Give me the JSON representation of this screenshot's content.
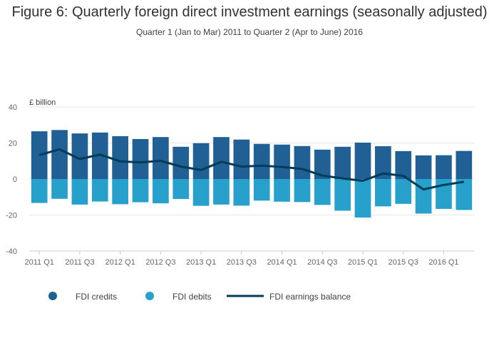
{
  "title": "Figure 6: Quarterly foreign direct investment earnings (seasonally adjusted)",
  "subtitle": "Quarter 1 (Jan to Mar) 2011 to Quarter 2 (Apr to June) 2016",
  "colors": {
    "credits": "#206095",
    "debits": "#27a0cc",
    "balance": "#003c57",
    "grid": "#e6e6e6"
  },
  "chart_data": {
    "type": "bar",
    "title": "Figure 6: Quarterly foreign direct investment earnings (seasonally adjusted)",
    "ylabel": "£ billion",
    "xlabel": "",
    "ylim": [
      -40,
      40
    ],
    "yticks": [
      40,
      20,
      0,
      -20,
      -40
    ],
    "categories": [
      "2011 Q1",
      "2011 Q2",
      "2011 Q3",
      "2011 Q4",
      "2012 Q1",
      "2012 Q2",
      "2012 Q3",
      "2012 Q4",
      "2013 Q1",
      "2013 Q2",
      "2013 Q3",
      "2013 Q4",
      "2014 Q1",
      "2014 Q2",
      "2014 Q3",
      "2014 Q4",
      "2015 Q1",
      "2015 Q2",
      "2015 Q3",
      "2015 Q4",
      "2016 Q1",
      "2016 Q2"
    ],
    "xtick_labels": [
      "2011 Q1",
      "2011 Q3",
      "2012 Q1",
      "2012 Q3",
      "2013 Q1",
      "2013 Q3",
      "2014 Q1",
      "2014 Q3",
      "2015 Q1",
      "2015 Q3",
      "2016 Q1"
    ],
    "series": [
      {
        "name": "FDI credits",
        "type": "bar",
        "values": [
          26.5,
          27.2,
          25.3,
          25.8,
          23.8,
          22.2,
          23.3,
          17.9,
          19.9,
          23.3,
          21.9,
          19.5,
          19.1,
          18.3,
          16.3,
          17.9,
          20.2,
          18.2,
          15.5,
          13.1,
          13.2,
          15.6
        ]
      },
      {
        "name": "FDI debits",
        "type": "bar",
        "values": [
          -13.3,
          -11.0,
          -14.2,
          -12.5,
          -14.0,
          -12.9,
          -13.5,
          -11.1,
          -14.9,
          -14.2,
          -14.8,
          -12.0,
          -12.6,
          -12.8,
          -14.4,
          -17.6,
          -21.4,
          -15.2,
          -13.8,
          -19.2,
          -16.6,
          -17.2
        ]
      },
      {
        "name": "FDI earnings balance",
        "type": "line",
        "values": [
          13.3,
          16.5,
          11.1,
          13.6,
          9.8,
          9.2,
          10.1,
          6.9,
          5.0,
          9.6,
          6.9,
          7.4,
          6.7,
          5.6,
          1.9,
          0.3,
          -1.0,
          3.1,
          1.8,
          -5.8,
          -3.3,
          -1.6
        ]
      }
    ],
    "legend": {
      "placement": "bottom-left",
      "entries": [
        "FDI credits",
        "FDI debits",
        "FDI earnings balance"
      ]
    },
    "grid": true
  }
}
